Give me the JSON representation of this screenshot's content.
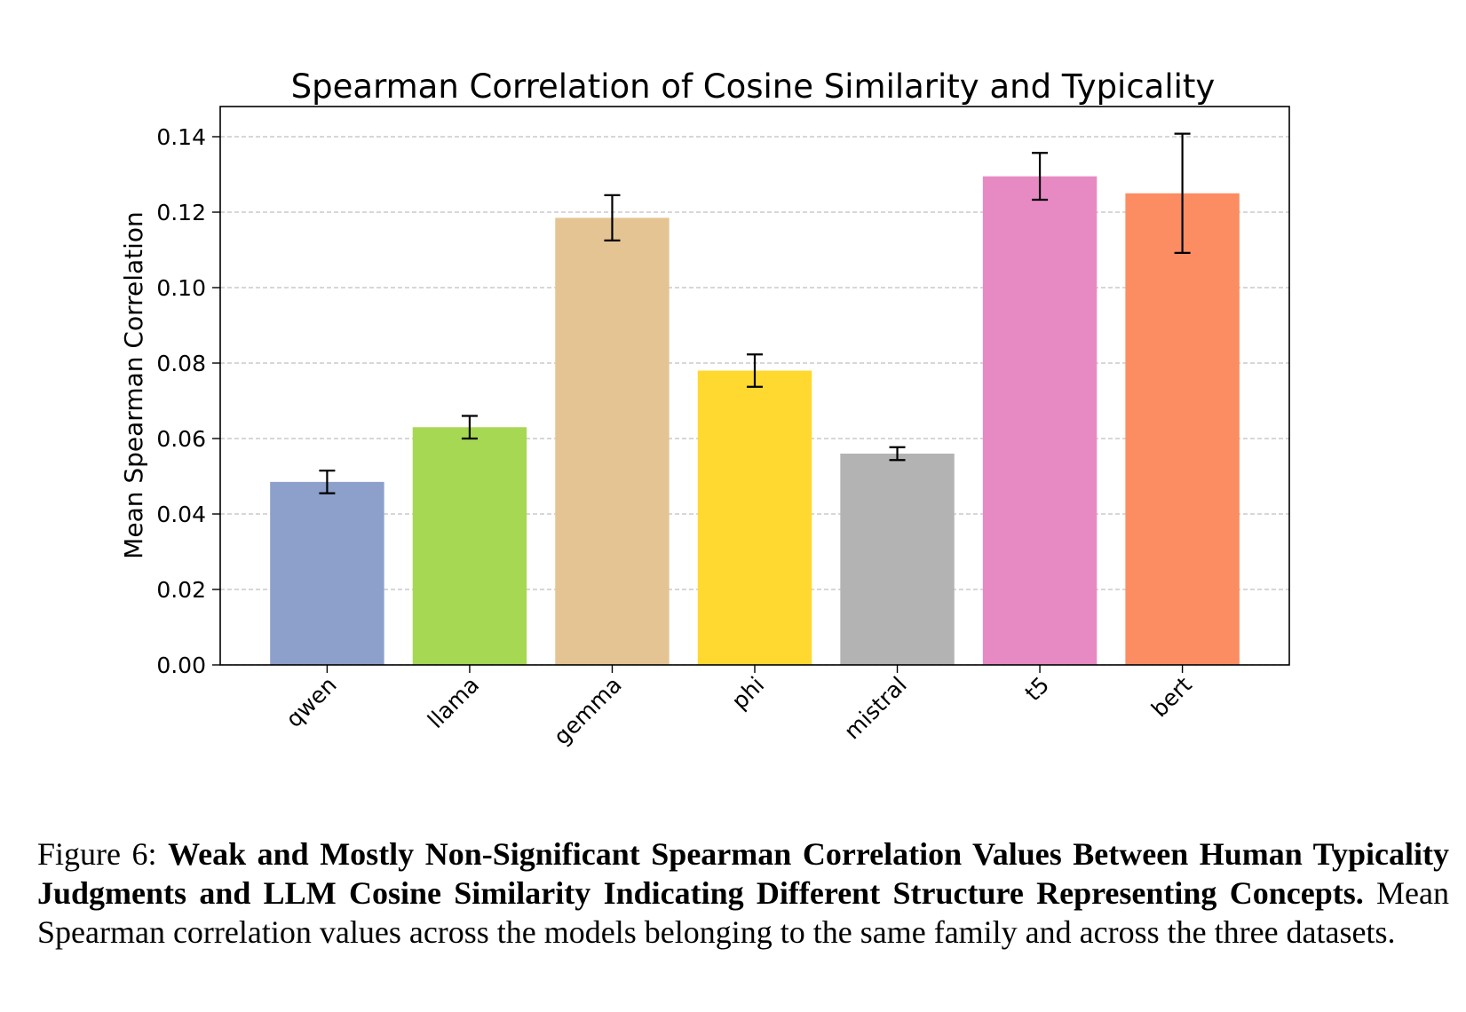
{
  "chart_data": {
    "type": "bar",
    "title": "Spearman Correlation of Cosine Similarity and Typicality",
    "xlabel": "",
    "ylabel": "Mean Spearman Correlation",
    "ylim": [
      0,
      0.148
    ],
    "yticks": [
      0.0,
      0.02,
      0.04,
      0.06,
      0.08,
      0.1,
      0.12,
      0.14
    ],
    "ytick_labels": [
      "0.00",
      "0.02",
      "0.04",
      "0.06",
      "0.08",
      "0.10",
      "0.12",
      "0.14"
    ],
    "grid": "horizontal dashed",
    "categories": [
      "qwen",
      "llama",
      "gemma",
      "phi",
      "mistral",
      "t5",
      "bert"
    ],
    "values": [
      0.0485,
      0.063,
      0.1185,
      0.078,
      0.056,
      0.1295,
      0.125
    ],
    "errors": [
      0.003,
      0.003,
      0.006,
      0.0043,
      0.0017,
      0.0062,
      0.0158
    ],
    "colors": [
      "#8DA0CB",
      "#A6D854",
      "#E5C494",
      "#FFD92F",
      "#B3B3B3",
      "#E78AC3",
      "#FC8D62"
    ]
  },
  "caption": {
    "label": "Figure 6:",
    "bold": "Weak and Mostly Non-Significant Spearman Correlation Values Between Human Typicality Judgments and LLM Cosine Similarity Indicating Different Structure Representing Concepts.",
    "text": "Mean Spearman correlation values across the models belonging to the same family and across the three datasets."
  }
}
